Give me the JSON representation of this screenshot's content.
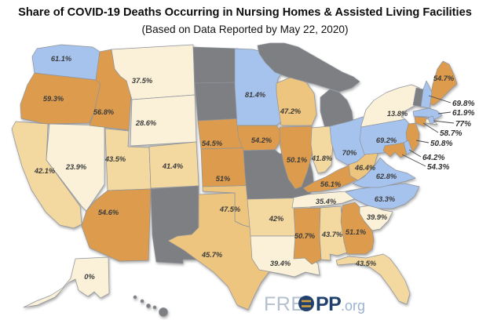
{
  "chart_data": {
    "type": "choropleth",
    "region": "United States",
    "title": "Share of COVID-19 Deaths Occurring in Nursing Homes & Assisted Living Facilities",
    "subtitle": "(Based on Data Reported by May 22, 2020)",
    "unit": "%",
    "legend_visible": false,
    "no_data_color": "#7d7f82",
    "color_scale": [
      {
        "min": 60,
        "color": "#a6c3ee",
        "meaning": "60% and above (blue)"
      },
      {
        "min": 48,
        "color": "#dd9c4d",
        "meaning": "48-60% (orange)"
      },
      {
        "min": 44,
        "color": "#edc57e",
        "meaning": "44-48% (medium tan)"
      },
      {
        "min": 40,
        "color": "#f3d9a0",
        "meaning": "40-44% (light tan)"
      },
      {
        "min": 0,
        "color": "#faf1d8",
        "meaning": "below 40% (cream)"
      }
    ],
    "callout_states": [
      "NH",
      "MA",
      "RI",
      "CT",
      "NJ",
      "DE",
      "MD"
    ],
    "states": [
      {
        "id": "WA",
        "name": "Washington",
        "value": 61.1,
        "label": "61.1%"
      },
      {
        "id": "OR",
        "name": "Oregon",
        "value": 59.3,
        "label": "59.3%"
      },
      {
        "id": "CA",
        "name": "California",
        "value": 42.1,
        "label": "42.1%"
      },
      {
        "id": "NV",
        "name": "Nevada",
        "value": 23.9,
        "label": "23.9%"
      },
      {
        "id": "ID",
        "name": "Idaho",
        "value": 56.8,
        "label": "56.8%"
      },
      {
        "id": "MT",
        "name": "Montana",
        "value": 37.5,
        "label": "37.5%"
      },
      {
        "id": "WY",
        "name": "Wyoming",
        "value": 28.6,
        "label": "28.6%"
      },
      {
        "id": "UT",
        "name": "Utah",
        "value": 43.5,
        "label": "43.5%"
      },
      {
        "id": "CO",
        "name": "Colorado",
        "value": 41.4,
        "label": "41.4%"
      },
      {
        "id": "AZ",
        "name": "Arizona",
        "value": 54.6,
        "label": "54.6%"
      },
      {
        "id": "NM",
        "name": "New Mexico",
        "value": null,
        "label": ""
      },
      {
        "id": "ND",
        "name": "North Dakota",
        "value": null,
        "label": ""
      },
      {
        "id": "SD",
        "name": "South Dakota",
        "value": null,
        "label": ""
      },
      {
        "id": "NE",
        "name": "Nebraska",
        "value": 54.5,
        "label": "54.5%"
      },
      {
        "id": "KS",
        "name": "Kansas",
        "value": 51,
        "label": "51%"
      },
      {
        "id": "OK",
        "name": "Oklahoma",
        "value": 47.5,
        "label": "47.5%"
      },
      {
        "id": "TX",
        "name": "Texas",
        "value": 45.7,
        "label": "45.7%"
      },
      {
        "id": "MN",
        "name": "Minnesota",
        "value": 81.4,
        "label": "81.4%"
      },
      {
        "id": "IA",
        "name": "Iowa",
        "value": 54.2,
        "label": "54.2%"
      },
      {
        "id": "MO",
        "name": "Missouri",
        "value": null,
        "label": ""
      },
      {
        "id": "AR",
        "name": "Arkansas",
        "value": 42,
        "label": "42%"
      },
      {
        "id": "LA",
        "name": "Louisiana",
        "value": 39.4,
        "label": "39.4%"
      },
      {
        "id": "WI",
        "name": "Wisconsin",
        "value": 47.2,
        "label": "47.2%"
      },
      {
        "id": "IL",
        "name": "Illinois",
        "value": 50.1,
        "label": "50.1%"
      },
      {
        "id": "MI",
        "name": "Michigan",
        "value": null,
        "label": ""
      },
      {
        "id": "IN",
        "name": "Indiana",
        "value": 41.8,
        "label": "41.8%"
      },
      {
        "id": "OH",
        "name": "Ohio",
        "value": 70,
        "label": "70%"
      },
      {
        "id": "KY",
        "name": "Kentucky",
        "value": 56.1,
        "label": "56.1%"
      },
      {
        "id": "TN",
        "name": "Tennessee",
        "value": 35.4,
        "label": "35.4%"
      },
      {
        "id": "MS",
        "name": "Mississippi",
        "value": 50.7,
        "label": "50.7%"
      },
      {
        "id": "AL",
        "name": "Alabama",
        "value": 43.7,
        "label": "43.7%"
      },
      {
        "id": "GA",
        "name": "Georgia",
        "value": 51.1,
        "label": "51.1%"
      },
      {
        "id": "FL",
        "name": "Florida",
        "value": 43.5,
        "label": "43.5%"
      },
      {
        "id": "SC",
        "name": "South Carolina",
        "value": 39.9,
        "label": "39.9%"
      },
      {
        "id": "NC",
        "name": "North Carolina",
        "value": 63.3,
        "label": "63.3%"
      },
      {
        "id": "VA",
        "name": "Virginia",
        "value": 62.8,
        "label": "62.8%"
      },
      {
        "id": "WV",
        "name": "West Virginia",
        "value": 46.4,
        "label": "46.4%"
      },
      {
        "id": "PA",
        "name": "Pennsylvania",
        "value": 69.2,
        "label": "69.2%"
      },
      {
        "id": "NY",
        "name": "New York",
        "value": 13.8,
        "label": "13.8%"
      },
      {
        "id": "ME",
        "name": "Maine",
        "value": 54.7,
        "label": "54.7%"
      },
      {
        "id": "VT",
        "name": "Vermont",
        "value": null,
        "label": ""
      },
      {
        "id": "NH",
        "name": "New Hampshire",
        "value": 69.8,
        "label": "69.8%"
      },
      {
        "id": "MA",
        "name": "Massachusetts",
        "value": 61.9,
        "label": "61.9%"
      },
      {
        "id": "RI",
        "name": "Rhode Island",
        "value": 77,
        "label": "77%"
      },
      {
        "id": "CT",
        "name": "Connecticut",
        "value": 58.7,
        "label": "58.7%"
      },
      {
        "id": "NJ",
        "name": "New Jersey",
        "value": 50.8,
        "label": "50.8%"
      },
      {
        "id": "DE",
        "name": "Delaware",
        "value": 64.2,
        "label": "64.2%"
      },
      {
        "id": "MD",
        "name": "Maryland",
        "value": 54.3,
        "label": "54.3%"
      },
      {
        "id": "AK",
        "name": "Alaska",
        "value": 0,
        "label": "0%"
      },
      {
        "id": "HI",
        "name": "Hawaii",
        "value": null,
        "label": ""
      }
    ]
  },
  "logo": {
    "text_fre": "FRE",
    "text_pp": "PP",
    "text_org": ".org",
    "navy": "#20406e",
    "light_gray": "#b4c0ce",
    "org_color": "#9db3d0",
    "gold": "#d09f3f"
  }
}
